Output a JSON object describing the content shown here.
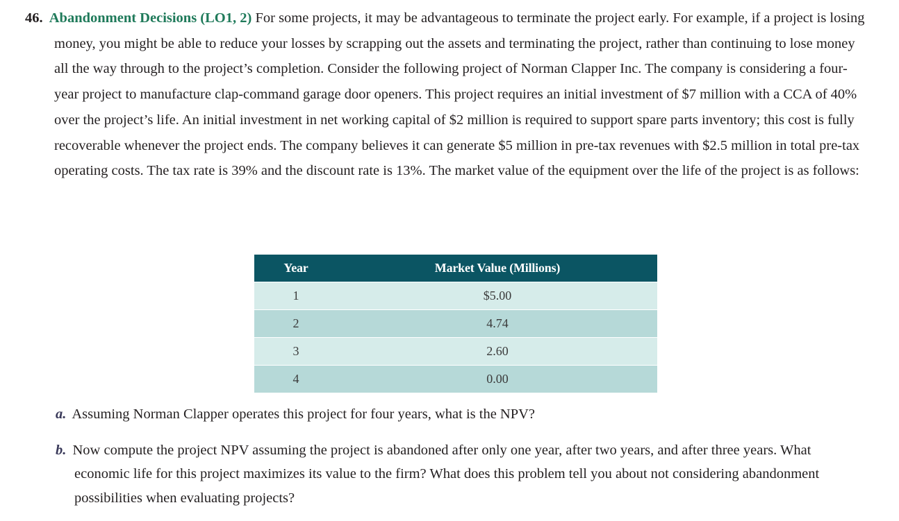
{
  "problem": {
    "number": "46.",
    "title": "Abandonment Decisions (LO1, 2)",
    "text": "For some projects, it may be advantageous to terminate the project early. For example, if a project is losing money, you might be able to reduce your losses by scrapping out the assets and terminating the project, rather than continuing to lose money all the way through to the project’s completion. Consider the following project of Norman Clapper Inc. The company is considering a four-year project to manufacture clap-command garage door openers. This project requires an initial investment of $7 million with a CCA of 40% over the project’s life. An initial investment in net working capital of $2 million is required to support spare parts inventory; this cost is fully recoverable whenever the project ends. The company believes it can generate $5 million in pre-tax revenues with $2.5 million in total pre-tax operating costs. The tax rate is 39% and the discount rate is 13%. The market value of the equipment over the life of the project is as follows:"
  },
  "table": {
    "headers": [
      "Year",
      "Market Value (Millions)"
    ],
    "rows": [
      {
        "year": "1",
        "value": "$5.00"
      },
      {
        "year": "2",
        "value": "4.74"
      },
      {
        "year": "3",
        "value": "2.60"
      },
      {
        "year": "4",
        "value": "0.00"
      }
    ]
  },
  "questions": [
    {
      "label": "a.",
      "text": "Assuming Norman Clapper operates this project for four years, what is the NPV?"
    },
    {
      "label": "b.",
      "text": "Now compute the project NPV assuming the project is abandoned after only one year, after two years, and after three years. What economic life for this project maximizes its value to the firm? What does this problem tell you about not considering abandonment possibilities when evaluating projects?"
    }
  ],
  "colors": {
    "title": "#1f7a5a",
    "table_header": "#0b5563",
    "row_light": "#d6ecea",
    "row_dark": "#b6d9d8"
  }
}
